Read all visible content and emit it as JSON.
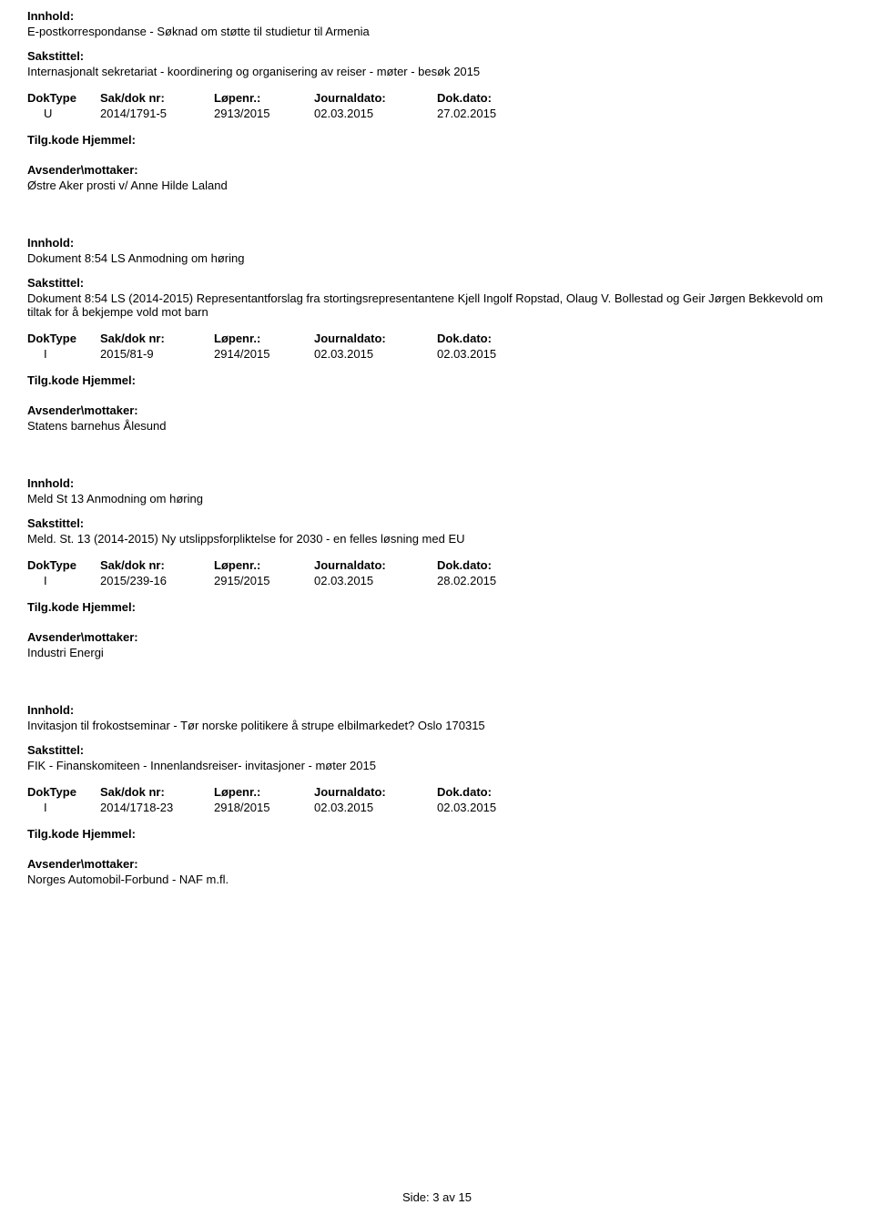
{
  "labels": {
    "innhold": "Innhold:",
    "sakstittel": "Sakstittel:",
    "doktype": "DokType",
    "saknr": "Sak/dok nr:",
    "lopenr": "Løpenr.:",
    "journaldato": "Journaldato:",
    "dokdato": "Dok.dato:",
    "tilgkode": "Tilg.kode Hjemmel:",
    "avsender": "Avsender\\mottaker:"
  },
  "entries": [
    {
      "innhold": "E-postkorrespondanse - Søknad om støtte til studietur til Armenia",
      "sakstittel": "Internasjonalt sekretariat - koordinering og organisering av reiser - møter - besøk 2015",
      "doktype": "U",
      "saknr": "2014/1791-5",
      "lopenr": "2913/2015",
      "journaldato": "02.03.2015",
      "dokdato": "27.02.2015",
      "avsender": "Østre Aker prosti v/ Anne Hilde Laland"
    },
    {
      "innhold": "Dokument 8:54 LS Anmodning om høring",
      "sakstittel": "Dokument 8:54 LS (2014-2015) Representantforslag fra stortingsrepresentantene Kjell Ingolf Ropstad, Olaug V. Bollestad og Geir Jørgen Bekkevold om tiltak for å bekjempe vold mot barn",
      "doktype": "I",
      "saknr": "2015/81-9",
      "lopenr": "2914/2015",
      "journaldato": "02.03.2015",
      "dokdato": "02.03.2015",
      "avsender": "Statens barnehus Ålesund"
    },
    {
      "innhold": "Meld St 13 Anmodning om høring",
      "sakstittel": "Meld. St. 13 (2014-2015) Ny utslippsforpliktelse for 2030 - en felles løsning med EU",
      "doktype": "I",
      "saknr": "2015/239-16",
      "lopenr": "2915/2015",
      "journaldato": "02.03.2015",
      "dokdato": "28.02.2015",
      "avsender": "Industri Energi"
    },
    {
      "innhold": "Invitasjon til frokostseminar - Tør norske politikere å strupe elbilmarkedet? Oslo 170315",
      "sakstittel": "FIK - Finanskomiteen - Innenlandsreiser- invitasjoner - møter 2015",
      "doktype": "I",
      "saknr": "2014/1718-23",
      "lopenr": "2918/2015",
      "journaldato": "02.03.2015",
      "dokdato": "02.03.2015",
      "avsender": "Norges Automobil-Forbund - NAF m.fl."
    }
  ],
  "footer": {
    "prefix": "Side:",
    "page": "3",
    "sep": "av",
    "total": "15"
  }
}
